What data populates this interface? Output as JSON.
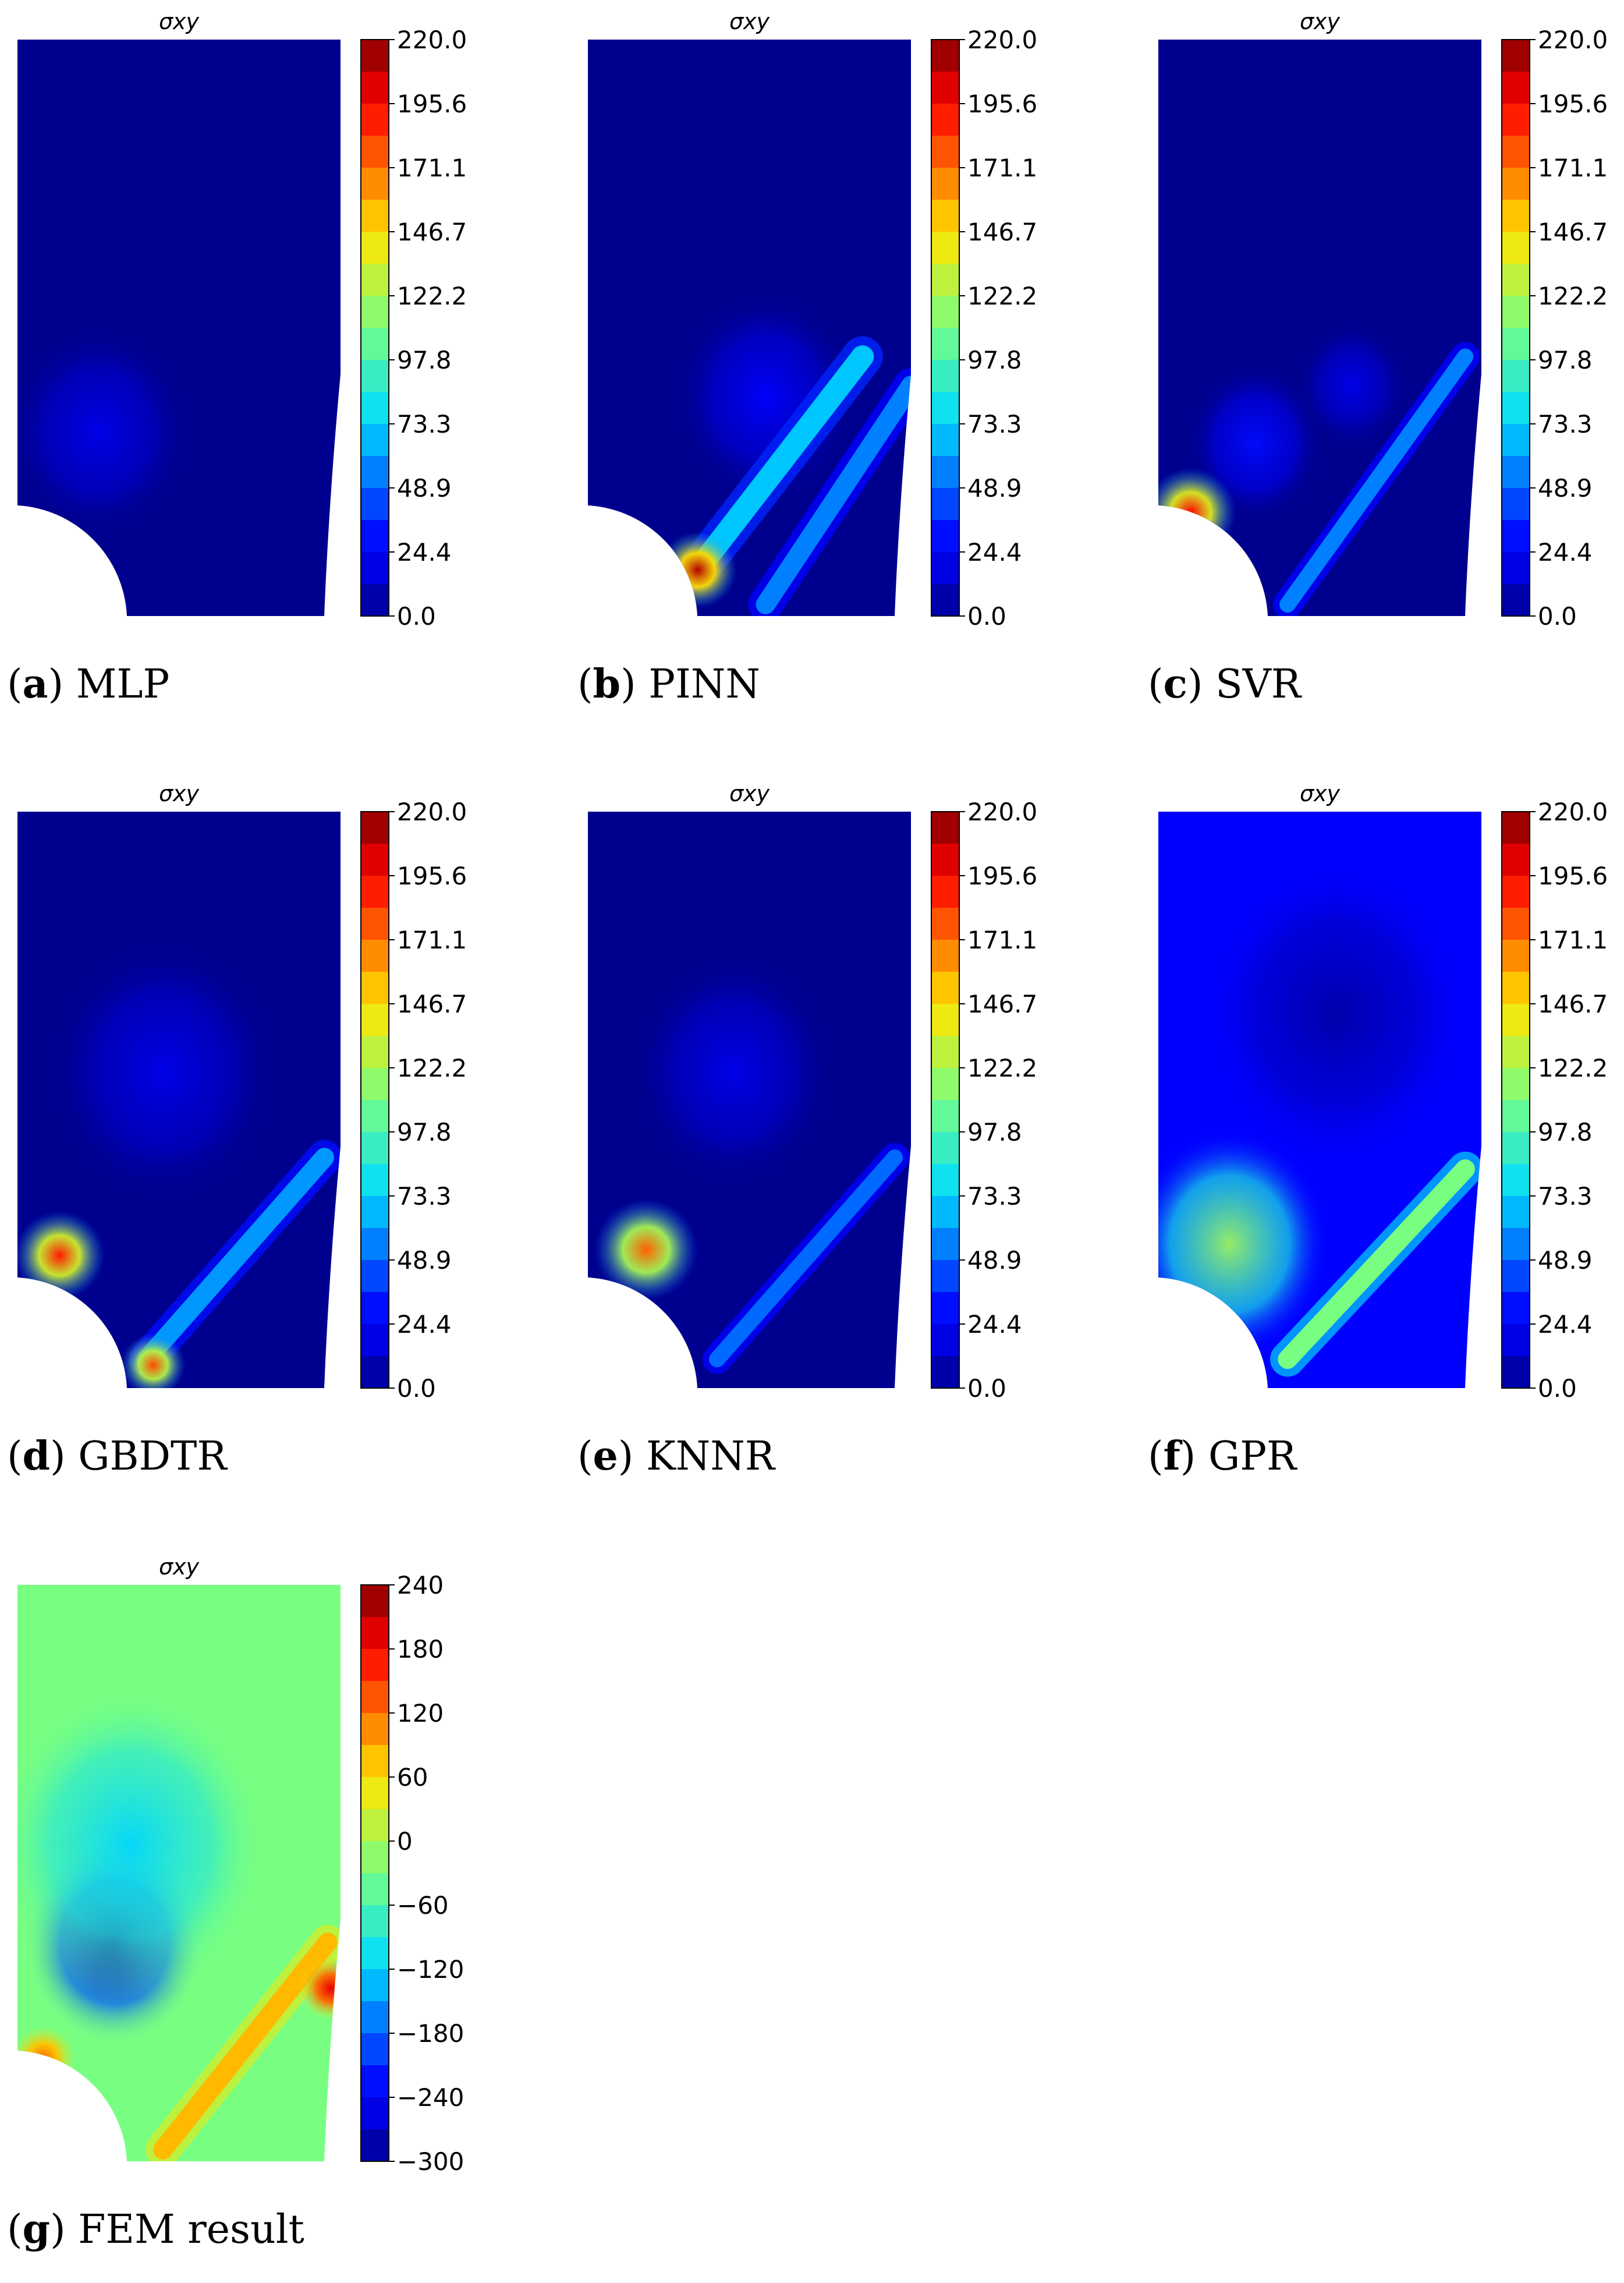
{
  "chart_data": [
    {
      "type": "heatmap",
      "title": "σxy",
      "caption_letter": "a",
      "caption_text": "MLP",
      "colorbar": {
        "ticks": [
          "220.0",
          "195.6",
          "171.1",
          "146.7",
          "122.2",
          "97.8",
          "73.3",
          "48.9",
          "24.4",
          "0.0"
        ],
        "range": [
          0,
          220
        ]
      },
      "field": {
        "background": 0,
        "hotspots": [],
        "bands": [],
        "blobs": [
          [
            0.25,
            0.68,
            0.2,
            20
          ]
        ]
      }
    },
    {
      "type": "heatmap",
      "title": "σxy",
      "caption_letter": "b",
      "caption_text": "PINN",
      "colorbar": {
        "ticks": [
          "220.0",
          "195.6",
          "171.1",
          "146.7",
          "122.2",
          "97.8",
          "73.3",
          "48.9",
          "24.4",
          "0.0"
        ],
        "range": [
          0,
          220
        ]
      },
      "field": {
        "background": 0,
        "hotspots": [
          [
            0.34,
            0.92,
            0.06,
            210
          ]
        ],
        "bands": [
          [
            0.34,
            0.92,
            0.85,
            0.55,
            0.07,
            70
          ],
          [
            0.55,
            0.98,
            1.0,
            0.6,
            0.06,
            55
          ]
        ],
        "blobs": [
          [
            0.55,
            0.62,
            0.2,
            25
          ]
        ]
      }
    },
    {
      "type": "heatmap",
      "title": "σxy",
      "caption_letter": "c",
      "caption_text": "SVR",
      "colorbar": {
        "ticks": [
          "220.0",
          "195.6",
          "171.1",
          "146.7",
          "122.2",
          "97.8",
          "73.3",
          "48.9",
          "24.4",
          "0.0"
        ],
        "range": [
          0,
          220
        ]
      },
      "field": {
        "background": 0,
        "hotspots": [
          [
            0.1,
            0.82,
            0.07,
            195
          ]
        ],
        "bands": [
          [
            0.4,
            0.98,
            0.95,
            0.55,
            0.05,
            55
          ]
        ],
        "blobs": [
          [
            0.3,
            0.7,
            0.15,
            30
          ],
          [
            0.6,
            0.6,
            0.12,
            20
          ]
        ]
      }
    },
    {
      "type": "heatmap",
      "title": "σxy",
      "caption_letter": "d",
      "caption_text": "GBDTR",
      "colorbar": {
        "ticks": [
          "220.0",
          "195.6",
          "171.1",
          "146.7",
          "122.2",
          "97.8",
          "73.3",
          "48.9",
          "24.4",
          "0.0"
        ],
        "range": [
          0,
          220
        ]
      },
      "field": {
        "background": 0,
        "hotspots": [
          [
            0.13,
            0.77,
            0.07,
            190
          ],
          [
            0.42,
            0.96,
            0.05,
            180
          ]
        ],
        "bands": [
          [
            0.4,
            0.95,
            0.95,
            0.6,
            0.06,
            60
          ]
        ],
        "blobs": [
          [
            0.45,
            0.45,
            0.25,
            20
          ]
        ]
      }
    },
    {
      "type": "heatmap",
      "title": "σxy",
      "caption_letter": "e",
      "caption_text": "KNNR",
      "colorbar": {
        "ticks": [
          "220.0",
          "195.6",
          "171.1",
          "146.7",
          "122.2",
          "97.8",
          "73.3",
          "48.9",
          "24.4",
          "0.0"
        ],
        "range": [
          0,
          220
        ]
      },
      "field": {
        "background": 0,
        "hotspots": [
          [
            0.18,
            0.76,
            0.08,
            175
          ]
        ],
        "bands": [
          [
            0.4,
            0.95,
            0.95,
            0.6,
            0.05,
            50
          ]
        ],
        "blobs": [
          [
            0.45,
            0.45,
            0.22,
            20
          ]
        ]
      }
    },
    {
      "type": "heatmap",
      "title": "σxy",
      "caption_letter": "f",
      "caption_text": "GPR",
      "colorbar": {
        "ticks": [
          "220.0",
          "195.6",
          "171.1",
          "146.7",
          "122.2",
          "97.8",
          "73.3",
          "48.9",
          "24.4",
          "0.0"
        ],
        "range": [
          0,
          220
        ]
      },
      "field": {
        "background": 25,
        "hotspots": [],
        "bands": [
          [
            0.4,
            0.95,
            0.95,
            0.62,
            0.06,
            85
          ]
        ],
        "blobs": [
          [
            0.22,
            0.75,
            0.22,
            95
          ],
          [
            0.55,
            0.35,
            0.3,
            -20
          ]
        ]
      }
    },
    {
      "type": "heatmap",
      "title": "σxy",
      "caption_letter": "g",
      "caption_text": "FEM result",
      "colorbar": {
        "ticks": [
          "240",
          "180",
          "120",
          "60",
          "0",
          "−60",
          "−120",
          "−180",
          "−240",
          "−300"
        ],
        "range": [
          -300,
          240
        ]
      },
      "field": {
        "background": -30,
        "hotspots": [
          [
            0.08,
            0.82,
            0.05,
            150
          ],
          [
            0.97,
            0.7,
            0.05,
            220
          ]
        ],
        "bands": [
          [
            0.45,
            0.98,
            0.96,
            0.62,
            0.06,
            110
          ]
        ],
        "blobs": [
          [
            0.3,
            0.62,
            0.2,
            -260
          ],
          [
            0.35,
            0.45,
            0.3,
            -90
          ]
        ]
      }
    }
  ]
}
